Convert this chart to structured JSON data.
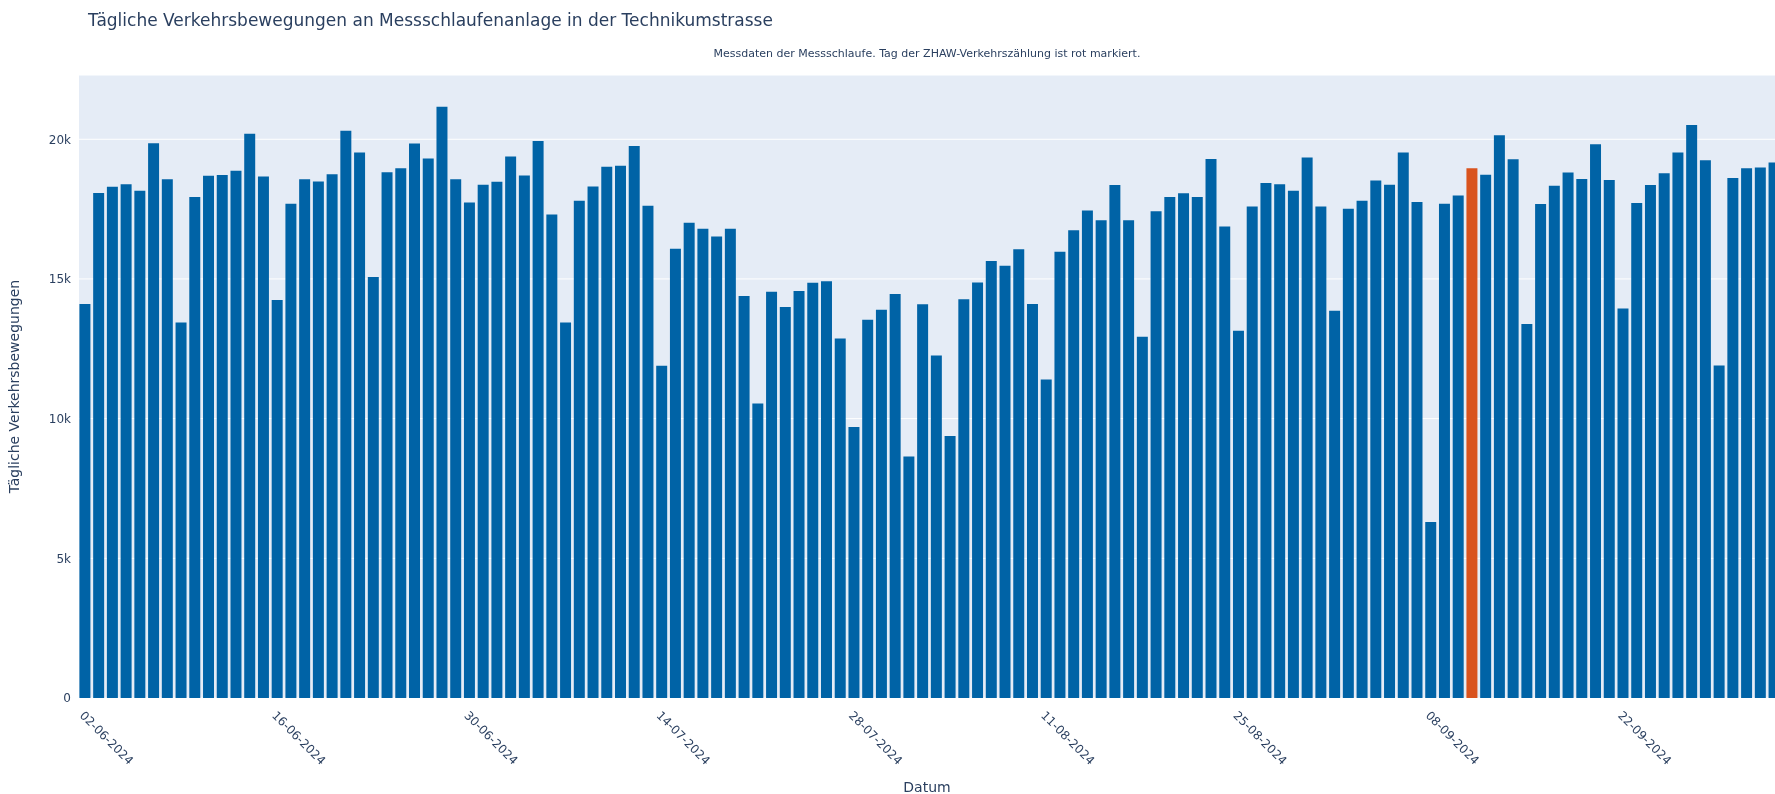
{
  "chart_data": {
    "type": "bar",
    "title": "Tägliche Verkehrsbewegungen an Messschlaufenanlage in der Technikumstrasse",
    "subtitle": "Messdaten der Messschlaufe. Tag der ZHAW-Verkehrszählung ist rot markiert.",
    "xlabel": "Datum",
    "ylabel": "Tägliche Verkehrsbewegungen",
    "x": [
      "2024-06-02",
      "2024-06-03",
      "2024-06-04",
      "2024-06-05",
      "2024-06-06",
      "2024-06-07",
      "2024-06-08",
      "2024-06-09",
      "2024-06-10",
      "2024-06-11",
      "2024-06-12",
      "2024-06-13",
      "2024-06-14",
      "2024-06-15",
      "2024-06-16",
      "2024-06-17",
      "2024-06-18",
      "2024-06-19",
      "2024-06-20",
      "2024-06-21",
      "2024-06-22",
      "2024-06-23",
      "2024-06-24",
      "2024-06-25",
      "2024-06-26",
      "2024-06-27",
      "2024-06-28",
      "2024-06-29",
      "2024-06-30",
      "2024-07-01",
      "2024-07-02",
      "2024-07-03",
      "2024-07-04",
      "2024-07-05",
      "2024-07-06",
      "2024-07-07",
      "2024-07-08",
      "2024-07-09",
      "2024-07-10",
      "2024-07-11",
      "2024-07-12",
      "2024-07-13",
      "2024-07-14",
      "2024-07-15",
      "2024-07-16",
      "2024-07-17",
      "2024-07-18",
      "2024-07-19",
      "2024-07-20",
      "2024-07-21",
      "2024-07-22",
      "2024-07-23",
      "2024-07-24",
      "2024-07-25",
      "2024-07-26",
      "2024-07-27",
      "2024-07-28",
      "2024-07-29",
      "2024-07-30",
      "2024-07-31",
      "2024-08-01",
      "2024-08-02",
      "2024-08-03",
      "2024-08-04",
      "2024-08-05",
      "2024-08-06",
      "2024-08-07",
      "2024-08-08",
      "2024-08-09",
      "2024-08-10",
      "2024-08-11",
      "2024-08-12",
      "2024-08-13",
      "2024-08-14",
      "2024-08-15",
      "2024-08-16",
      "2024-08-17",
      "2024-08-18",
      "2024-08-19",
      "2024-08-20",
      "2024-08-21",
      "2024-08-22",
      "2024-08-23",
      "2024-08-24",
      "2024-08-25",
      "2024-08-26",
      "2024-08-27",
      "2024-08-28",
      "2024-08-29",
      "2024-08-30",
      "2024-08-31",
      "2024-09-01",
      "2024-09-02",
      "2024-09-03",
      "2024-09-04",
      "2024-09-05",
      "2024-09-06",
      "2024-09-07",
      "2024-09-08",
      "2024-09-09",
      "2024-09-10",
      "2024-09-11",
      "2024-09-12",
      "2024-09-13",
      "2024-09-14",
      "2024-09-15",
      "2024-09-16",
      "2024-09-17",
      "2024-09-18",
      "2024-09-19",
      "2024-09-20",
      "2024-09-21",
      "2024-09-22",
      "2024-09-23",
      "2024-09-24",
      "2024-09-25",
      "2024-09-26",
      "2024-09-27",
      "2024-09-28",
      "2024-09-29",
      "2024-09-30",
      "2024-10-01",
      "2024-10-02",
      "2024-10-03"
    ],
    "values": [
      14100,
      18080,
      18300,
      18390,
      18160,
      19860,
      18570,
      13440,
      17930,
      18690,
      18720,
      18870,
      20200,
      18670,
      14250,
      17690,
      18570,
      18490,
      18750,
      20300,
      19530,
      15070,
      18820,
      18960,
      19850,
      19310,
      21160,
      18570,
      17740,
      18370,
      18480,
      19380,
      18700,
      19940,
      17310,
      13440,
      17800,
      18310,
      19020,
      19050,
      19760,
      17620,
      11890,
      16080,
      17010,
      16800,
      16520,
      16800,
      14390,
      10540,
      14540,
      14000,
      14570,
      14860,
      14920,
      12870,
      9700,
      13540,
      13900,
      14460,
      8640,
      14090,
      12260,
      9380,
      14270,
      14870,
      15640,
      15470,
      16060,
      14100,
      11400,
      15970,
      16740,
      17450,
      17100,
      18360,
      17100,
      12930,
      17420,
      17930,
      18070,
      17930,
      19290,
      16880,
      13150,
      17590,
      18430,
      18390,
      18160,
      19350,
      17590,
      13860,
      17510,
      17800,
      18520,
      18370,
      19530,
      17750,
      6300,
      17690,
      17990,
      18960,
      18730,
      20140,
      19280,
      13390,
      17680,
      18340,
      18810,
      18580,
      19820,
      18540,
      13940,
      17720,
      18360,
      18780,
      19530,
      20510,
      19250,
      11900,
      18610,
      18960,
      18990,
      19170
    ],
    "colors": [
      "#0063a6",
      "#0063a6",
      "#0063a6",
      "#0063a6",
      "#0063a6",
      "#0063a6",
      "#0063a6",
      "#0063a6",
      "#0063a6",
      "#0063a6",
      "#0063a6",
      "#0063a6",
      "#0063a6",
      "#0063a6",
      "#0063a6",
      "#0063a6",
      "#0063a6",
      "#0063a6",
      "#0063a6",
      "#0063a6",
      "#0063a6",
      "#0063a6",
      "#0063a6",
      "#0063a6",
      "#0063a6",
      "#0063a6",
      "#0063a6",
      "#0063a6",
      "#0063a6",
      "#0063a6",
      "#0063a6",
      "#0063a6",
      "#0063a6",
      "#0063a6",
      "#0063a6",
      "#0063a6",
      "#0063a6",
      "#0063a6",
      "#0063a6",
      "#0063a6",
      "#0063a6",
      "#0063a6",
      "#0063a6",
      "#0063a6",
      "#0063a6",
      "#0063a6",
      "#0063a6",
      "#0063a6",
      "#0063a6",
      "#0063a6",
      "#0063a6",
      "#0063a6",
      "#0063a6",
      "#0063a6",
      "#0063a6",
      "#0063a6",
      "#0063a6",
      "#0063a6",
      "#0063a6",
      "#0063a6",
      "#0063a6",
      "#0063a6",
      "#0063a6",
      "#0063a6",
      "#0063a6",
      "#0063a6",
      "#0063a6",
      "#0063a6",
      "#0063a6",
      "#0063a6",
      "#0063a6",
      "#0063a6",
      "#0063a6",
      "#0063a6",
      "#0063a6",
      "#0063a6",
      "#0063a6",
      "#0063a6",
      "#0063a6",
      "#0063a6",
      "#0063a6",
      "#0063a6",
      "#0063a6",
      "#0063a6",
      "#0063a6",
      "#0063a6",
      "#0063a6",
      "#0063a6",
      "#0063a6",
      "#0063a6",
      "#0063a6",
      "#0063a6",
      "#0063a6",
      "#0063a6",
      "#0063a6",
      "#0063a6",
      "#0063a6",
      "#0063a6",
      "#0063a6",
      "#0063a6",
      "#0063a6",
      "#d9531e",
      "#0063a6",
      "#0063a6",
      "#0063a6",
      "#0063a6",
      "#0063a6",
      "#0063a6",
      "#0063a6",
      "#0063a6",
      "#0063a6",
      "#0063a6",
      "#0063a6",
      "#0063a6",
      "#0063a6",
      "#0063a6",
      "#0063a6",
      "#0063a6",
      "#0063a6",
      "#0063a6",
      "#0063a6",
      "#0063a6",
      "#0063a6",
      "#0063a6"
    ],
    "xlim": [
      "2024-06-01T13:00",
      "2024-10-03T01:00"
    ],
    "xticks": [
      {
        "value": "2024-06-02",
        "label": "02-06-2024"
      },
      {
        "value": "2024-06-16",
        "label": "16-06-2024"
      },
      {
        "value": "2024-06-30",
        "label": "30-06-2024"
      },
      {
        "value": "2024-07-14",
        "label": "14-07-2024"
      },
      {
        "value": "2024-07-28",
        "label": "28-07-2024"
      },
      {
        "value": "2024-08-11",
        "label": "11-08-2024"
      },
      {
        "value": "2024-08-25",
        "label": "25-08-2024"
      },
      {
        "value": "2024-09-08",
        "label": "08-09-2024"
      },
      {
        "value": "2024-09-22",
        "label": "22-09-2024"
      }
    ],
    "ylim": [
      0,
      22300
    ],
    "yticks": [
      0,
      {
        "value": 5000,
        "label": "5k"
      },
      {
        "value": 10000,
        "label": "10k"
      },
      {
        "value": 15000,
        "label": "15k"
      },
      {
        "value": 20000,
        "label": "20k"
      }
    ],
    "grid": "y"
  }
}
